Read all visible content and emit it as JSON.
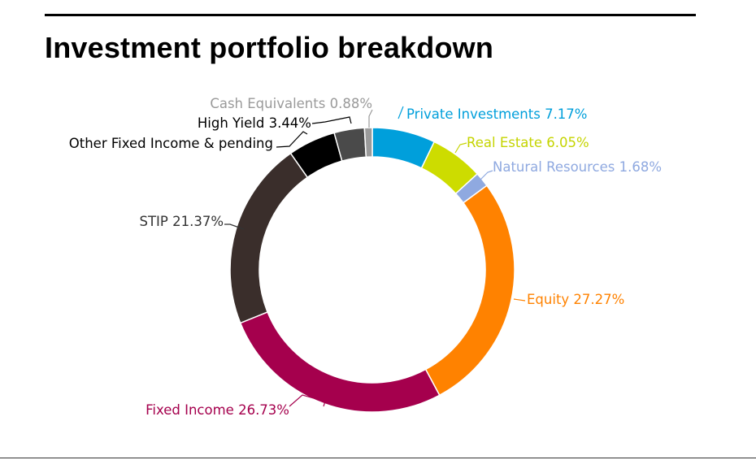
{
  "title": "Investment portfolio breakdown",
  "chart_data": {
    "type": "pie",
    "subtype": "donut",
    "title": "Investment portfolio breakdown",
    "start": "top",
    "direction": "clockwise",
    "slices": [
      {
        "name": "Private Investments",
        "value": 7.17,
        "label": "Private Investments 7.17%",
        "color": "#009fdb"
      },
      {
        "name": "Real Estate",
        "value": 6.05,
        "label": "Real Estate 6.05%",
        "color": "#cddc00"
      },
      {
        "name": "Natural Resources",
        "value": 1.68,
        "label": "Natural Resources 1.68%",
        "color": "#8fa9e0"
      },
      {
        "name": "Equity",
        "value": 27.27,
        "label": "Equity 27.27%",
        "color": "#ff8200"
      },
      {
        "name": "Fixed Income",
        "value": 26.73,
        "label": "Fixed Income 26.73%",
        "color": "#a5004d"
      },
      {
        "name": "STIP",
        "value": 21.37,
        "label": "STIP 21.37%",
        "color": "#3a2e2b"
      },
      {
        "name": "Other Fixed Income & pending",
        "value": 5.41,
        "label": "Other Fixed Income & pending",
        "color": "#000000"
      },
      {
        "name": "High Yield",
        "value": 3.44,
        "label": "High Yield 3.44%",
        "color": "#4a4a4a"
      },
      {
        "name": "Cash Equivalents",
        "value": 0.88,
        "label": "Cash Equivalents 0.88%",
        "color": "#9a9a9a"
      }
    ],
    "label_colors": [
      "#009fdb",
      "#c5d400",
      "#8fa9e0",
      "#ff8200",
      "#a5004d",
      "#333333",
      "#000000",
      "#000000",
      "#9a9a9a"
    ]
  }
}
